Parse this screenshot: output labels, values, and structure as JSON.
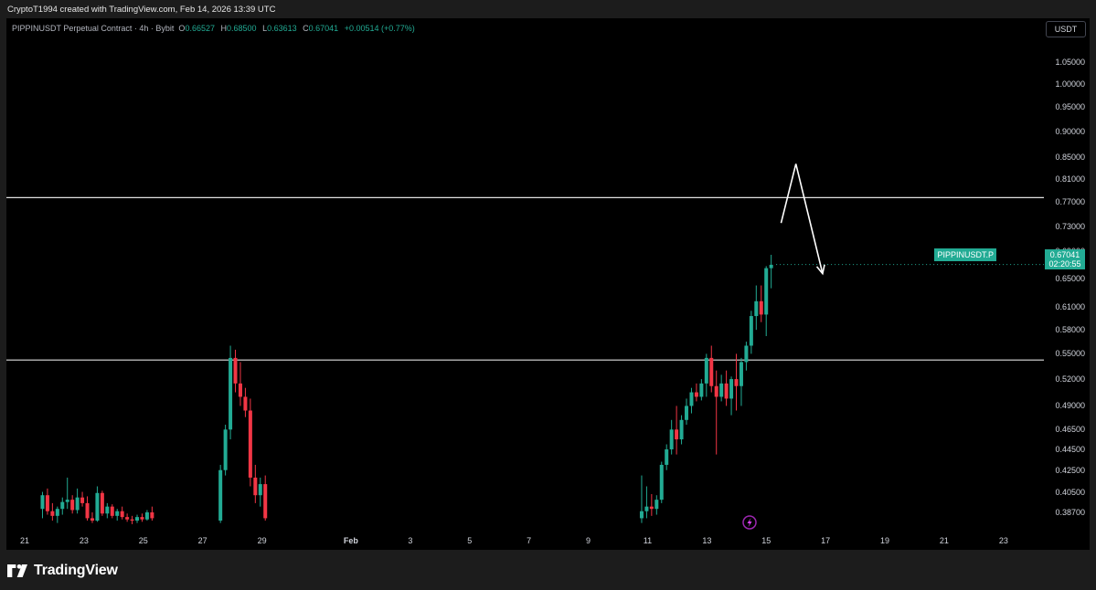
{
  "credit_line": "CryptoT1994 created with TradingView.com, Feb 14, 2026 13:39 UTC",
  "legend": {
    "symbol": "PIPPINUSDT Perpetual Contract · 4h · Bybit",
    "open_label": "O",
    "open": "0.66527",
    "high_label": "H",
    "high": "0.68500",
    "low_label": "L",
    "low": "0.63613",
    "close_label": "C",
    "close": "0.67041",
    "change": "+0.00514 (+0.77%)"
  },
  "price_axis": {
    "currency": "USDT",
    "ticks": [
      "1.05000",
      "1.00000",
      "0.95000",
      "0.90000",
      "0.85000",
      "0.81000",
      "0.77000",
      "0.73000",
      "0.69000",
      "0.65000",
      "0.61000",
      "0.58000",
      "0.55000",
      "0.52000",
      "0.49000",
      "0.46500",
      "0.44500",
      "0.42500",
      "0.40500",
      "0.38700"
    ]
  },
  "symbol_tag": "PIPPINUSDT.P",
  "last_price": {
    "price": "0.67041",
    "countdown": "02:20:55"
  },
  "time_axis": {
    "ticks": [
      {
        "label": "21",
        "bold": false
      },
      {
        "label": "23",
        "bold": false
      },
      {
        "label": "25",
        "bold": false
      },
      {
        "label": "27",
        "bold": false
      },
      {
        "label": "29",
        "bold": false
      },
      {
        "label": "Feb",
        "bold": true
      },
      {
        "label": "3",
        "bold": false
      },
      {
        "label": "5",
        "bold": false
      },
      {
        "label": "7",
        "bold": false
      },
      {
        "label": "9",
        "bold": false
      },
      {
        "label": "11",
        "bold": false
      },
      {
        "label": "13",
        "bold": false
      },
      {
        "label": "15",
        "bold": false
      },
      {
        "label": "17",
        "bold": false
      },
      {
        "label": "19",
        "bold": false
      },
      {
        "label": "21",
        "bold": false
      },
      {
        "label": "23",
        "bold": false
      }
    ]
  },
  "drawings": {
    "horizontal_lines": [
      0.7775,
      0.5425
    ],
    "projection_arrow": [
      [
        15.5,
        0.735
      ],
      [
        16.0,
        0.838
      ],
      [
        16.9,
        0.657
      ]
    ]
  },
  "colors": {
    "up": "#22ab94",
    "down": "#f23645",
    "background": "#000000",
    "lines": "#e0e0e0"
  },
  "footer": {
    "brand": "TradingView"
  }
}
